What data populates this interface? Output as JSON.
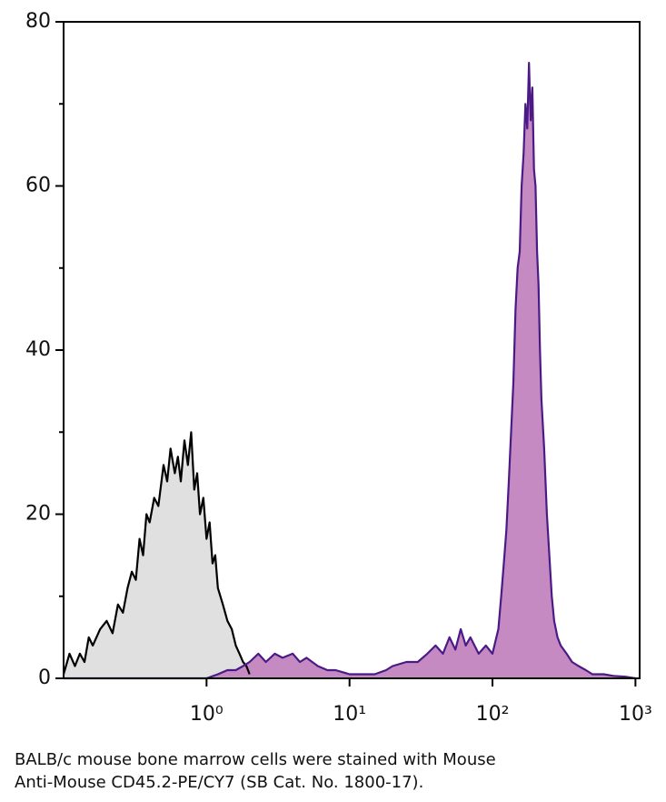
{
  "chart_data": {
    "type": "histogram-overlay",
    "xscale": "log",
    "xlim": [
      0.1,
      1070
    ],
    "ylim": [
      0,
      80
    ],
    "xticks": [
      {
        "value": 1,
        "label": "10⁰"
      },
      {
        "value": 10,
        "label": "10¹"
      },
      {
        "value": 100,
        "label": "10²"
      },
      {
        "value": 1000,
        "label": "10³"
      }
    ],
    "yticks": [
      0,
      20,
      40,
      60,
      80
    ],
    "yminor_ticks": [
      10,
      30,
      50,
      70
    ],
    "series": [
      {
        "color": "#000000",
        "fill": "#e0e0e0",
        "x": [
          0.1,
          0.11,
          0.12,
          0.13,
          0.14,
          0.15,
          0.16,
          0.18,
          0.2,
          0.22,
          0.24,
          0.26,
          0.28,
          0.3,
          0.32,
          0.34,
          0.36,
          0.38,
          0.4,
          0.43,
          0.46,
          0.5,
          0.53,
          0.56,
          0.6,
          0.63,
          0.66,
          0.7,
          0.74,
          0.78,
          0.82,
          0.86,
          0.9,
          0.95,
          1.0,
          1.05,
          1.1,
          1.15,
          1.2,
          1.3,
          1.4,
          1.5,
          1.6,
          1.7,
          1.8,
          1.9,
          2.0
        ],
        "values": [
          0.5,
          3,
          1.5,
          3,
          2,
          5,
          4,
          6,
          7,
          5.5,
          9,
          8,
          11,
          13,
          12,
          17,
          15,
          20,
          19,
          22,
          21,
          26,
          24,
          28,
          25,
          27,
          24,
          29,
          26,
          30,
          23,
          25,
          20,
          22,
          17,
          19,
          14,
          15,
          11,
          9,
          7,
          6,
          4,
          3,
          2,
          1.5,
          0.5
        ]
      },
      {
        "color": "#4b1a86",
        "fill": "#c58ac2",
        "x": [
          0.1,
          1.0,
          1.2,
          1.4,
          1.6,
          1.8,
          2.0,
          2.3,
          2.6,
          3.0,
          3.4,
          4.0,
          4.5,
          5.0,
          6.0,
          7.0,
          8.0,
          10,
          12,
          15,
          18,
          20,
          25,
          30,
          35,
          40,
          45,
          50,
          55,
          60,
          65,
          70,
          80,
          90,
          100,
          110,
          115,
          120,
          125,
          130,
          135,
          140,
          145,
          150,
          155,
          160,
          165,
          170,
          175,
          180,
          185,
          190,
          195,
          200,
          205,
          210,
          215,
          220,
          230,
          240,
          250,
          260,
          270,
          285,
          300,
          330,
          360,
          400,
          450,
          500,
          600,
          700,
          850,
          1000
        ],
        "values": [
          0,
          0,
          0.5,
          1,
          1,
          1.5,
          2,
          3,
          2,
          3,
          2.5,
          3,
          2,
          2.5,
          1.5,
          1,
          1,
          0.5,
          0.5,
          0.5,
          1,
          1.5,
          2,
          2,
          3,
          4,
          3,
          5,
          3.5,
          6,
          4,
          5,
          3,
          4,
          3,
          6,
          10,
          14,
          18,
          24,
          30,
          36,
          45,
          50,
          52,
          60,
          64,
          70,
          67,
          75,
          68,
          72,
          62,
          60,
          52,
          48,
          40,
          34,
          28,
          20,
          15,
          10,
          7,
          5,
          4,
          3,
          2,
          1.5,
          1,
          0.5,
          0.5,
          0.3,
          0.2,
          0
        ]
      }
    ],
    "caption": [
      "BALB/c mouse bone marrow cells were stained with Mouse",
      "Anti-Mouse CD45.2-PE/CY7 (SB Cat. No. 1800-17)."
    ]
  }
}
